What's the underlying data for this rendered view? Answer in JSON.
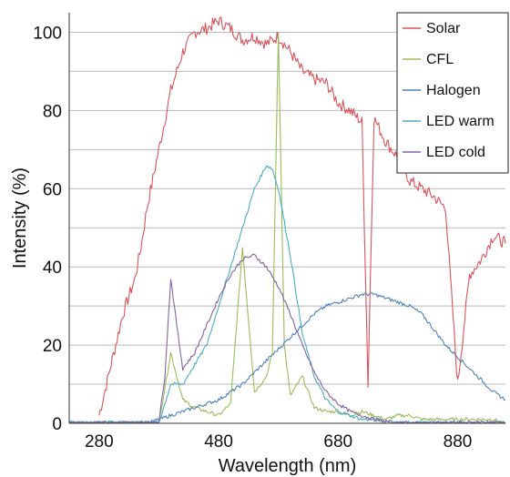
{
  "chart_data": {
    "type": "line",
    "xlabel": "Wavelength (nm)",
    "ylabel": "Intensity (%)",
    "xlim": [
      230,
      960
    ],
    "ylim": [
      0,
      105
    ],
    "x_ticks": [
      280,
      480,
      680,
      880
    ],
    "y_ticks": [
      0,
      20,
      40,
      60,
      80,
      100
    ],
    "x_tick_labels": [
      "280",
      "480",
      "680",
      "880"
    ],
    "y_tick_labels": [
      "0",
      "20",
      "40",
      "60",
      "80",
      "100"
    ],
    "grid": "horizontal",
    "legend_position": "top-right",
    "series": [
      {
        "name": "Solar",
        "color": "#d9535c",
        "x": [
          280,
          300,
          320,
          340,
          350,
          360,
          380,
          400,
          420,
          440,
          460,
          480,
          500,
          520,
          540,
          560,
          580,
          600,
          620,
          640,
          660,
          680,
          700,
          720,
          730,
          740,
          760,
          780,
          800,
          820,
          840,
          860,
          880,
          900,
          920,
          940,
          960
        ],
        "y": [
          2,
          15,
          28,
          37,
          45,
          55,
          70,
          85,
          95,
          100,
          101,
          103,
          101,
          98,
          99,
          97,
          99,
          95,
          90,
          88,
          87,
          82,
          80,
          77,
          10,
          78,
          72,
          68,
          62,
          60,
          58,
          55,
          10,
          38,
          42,
          48,
          46
        ]
      },
      {
        "name": "CFL",
        "color": "#9bbb59",
        "x": [
          230,
          380,
          400,
          420,
          440,
          460,
          480,
          500,
          520,
          540,
          560,
          570,
          580,
          590,
          600,
          620,
          640,
          660,
          680,
          700,
          720,
          740,
          760,
          780,
          800,
          820,
          840,
          860,
          880,
          900,
          920,
          940,
          960
        ],
        "y": [
          0,
          0,
          18,
          6,
          4,
          3,
          2,
          5,
          45,
          8,
          12,
          18,
          100,
          20,
          7,
          12,
          4,
          3,
          3,
          2,
          3,
          2,
          1,
          2,
          2,
          1,
          1,
          1,
          1,
          1,
          1,
          1,
          0
        ]
      },
      {
        "name": "Halogen",
        "color": "#4f81bd",
        "x": [
          230,
          360,
          380,
          400,
          420,
          440,
          460,
          480,
          500,
          520,
          540,
          560,
          580,
          600,
          620,
          640,
          660,
          680,
          700,
          720,
          740,
          760,
          780,
          800,
          820,
          840,
          860,
          880,
          900,
          920,
          940,
          960
        ],
        "y": [
          0,
          0,
          1,
          2,
          3,
          4,
          5,
          6,
          8,
          10,
          13,
          16,
          19,
          22,
          25,
          28,
          30,
          31,
          32,
          33,
          33,
          32,
          31,
          30,
          28,
          24,
          20,
          17,
          14,
          11,
          8,
          6
        ]
      },
      {
        "name": "LED warm",
        "color": "#4bacc6",
        "x": [
          230,
          380,
          400,
          420,
          440,
          460,
          480,
          500,
          520,
          540,
          560,
          570,
          580,
          600,
          620,
          640,
          660,
          680,
          700,
          720,
          740,
          760,
          780,
          960
        ],
        "y": [
          0,
          0,
          10,
          10,
          15,
          20,
          30,
          40,
          50,
          60,
          66,
          65,
          60,
          43,
          23,
          12,
          6,
          3,
          2,
          1,
          1,
          0.5,
          0,
          0
        ]
      },
      {
        "name": "LED cold",
        "color": "#8064a2",
        "x": [
          230,
          380,
          390,
          400,
          410,
          420,
          440,
          460,
          480,
          500,
          520,
          540,
          560,
          580,
          600,
          620,
          640,
          660,
          680,
          700,
          720,
          740,
          760,
          780,
          960
        ],
        "y": [
          0,
          0,
          12,
          37,
          25,
          14,
          18,
          25,
          32,
          38,
          42,
          43,
          40,
          35,
          28,
          20,
          13,
          8,
          5,
          3,
          2,
          1,
          0.5,
          0,
          0
        ]
      }
    ]
  }
}
